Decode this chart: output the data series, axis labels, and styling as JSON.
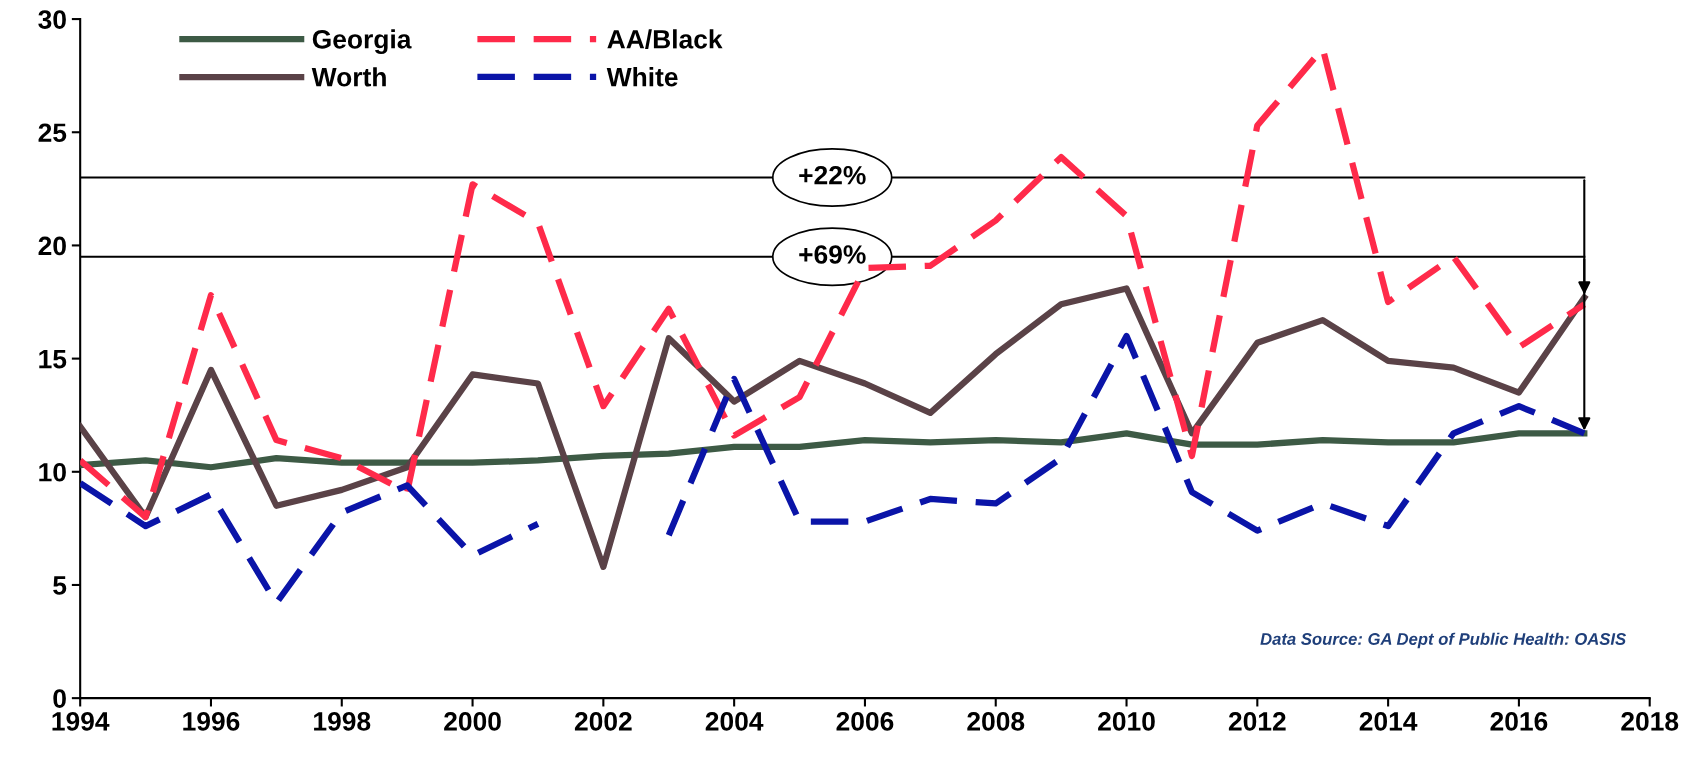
{
  "chart_data": {
    "type": "line",
    "x": [
      1994,
      1995,
      1996,
      1997,
      1998,
      1999,
      2000,
      2001,
      2002,
      2003,
      2004,
      2005,
      2006,
      2007,
      2008,
      2009,
      2010,
      2011,
      2012,
      2013,
      2014,
      2015,
      2016,
      2017
    ],
    "series": [
      {
        "name": "Georgia",
        "color": "#3d5a45",
        "line_style": "solid",
        "values": [
          10.3,
          10.5,
          10.2,
          10.6,
          10.4,
          10.4,
          10.4,
          10.5,
          10.7,
          10.8,
          11.1,
          11.1,
          11.4,
          11.3,
          11.4,
          11.3,
          11.7,
          11.2,
          11.2,
          11.4,
          11.3,
          11.3,
          11.7,
          11.7
        ]
      },
      {
        "name": "Worth",
        "color": "#5a4247",
        "line_style": "solid",
        "values": [
          12.0,
          8.0,
          14.5,
          8.5,
          9.2,
          10.2,
          14.3,
          13.9,
          5.8,
          15.9,
          13.1,
          14.9,
          13.9,
          12.6,
          15.2,
          17.4,
          18.1,
          11.7,
          15.7,
          16.7,
          14.9,
          14.6,
          13.5,
          17.7
        ]
      },
      {
        "name": "AA/Black",
        "color": "#ff2a4a",
        "line_style": "dashed",
        "values": [
          10.5,
          8.0,
          17.8,
          11.4,
          10.6,
          9.1,
          22.7,
          21.0,
          12.9,
          17.2,
          11.6,
          13.3,
          19.0,
          19.1,
          21.1,
          23.9,
          21.3,
          10.7,
          25.3,
          28.7,
          17.5,
          19.5,
          15.5,
          17.4
        ]
      },
      {
        "name": "White",
        "color": "#0a14a8",
        "line_style": "dashed",
        "values": [
          9.5,
          7.6,
          9.0,
          4.2,
          8.2,
          9.4,
          6.3,
          7.7,
          null,
          7.2,
          14.1,
          7.8,
          7.8,
          8.8,
          8.6,
          10.6,
          16.0,
          9.1,
          7.4,
          8.6,
          7.6,
          11.7,
          12.9,
          11.7
        ]
      }
    ],
    "xlim": [
      1994,
      2018
    ],
    "xticks": [
      1994,
      1996,
      1998,
      2000,
      2002,
      2004,
      2006,
      2008,
      2010,
      2012,
      2014,
      2016,
      2018
    ],
    "ylim": [
      0,
      30
    ],
    "yticks": [
      0,
      5,
      10,
      15,
      20,
      25,
      30
    ],
    "ref_lines": [
      {
        "axis": "y",
        "value": 23.0,
        "color": "#000000"
      },
      {
        "axis": "y",
        "value": 19.5,
        "color": "#000000"
      }
    ],
    "annotations": [
      {
        "text": "+22%",
        "x": 2005.5,
        "y": 23.0
      },
      {
        "text": "+69%",
        "x": 2005.5,
        "y": 19.5
      },
      "Data Source: GA Dept of Public Health: OASIS"
    ],
    "grid": false,
    "legend": "top left",
    "marker": "none"
  }
}
